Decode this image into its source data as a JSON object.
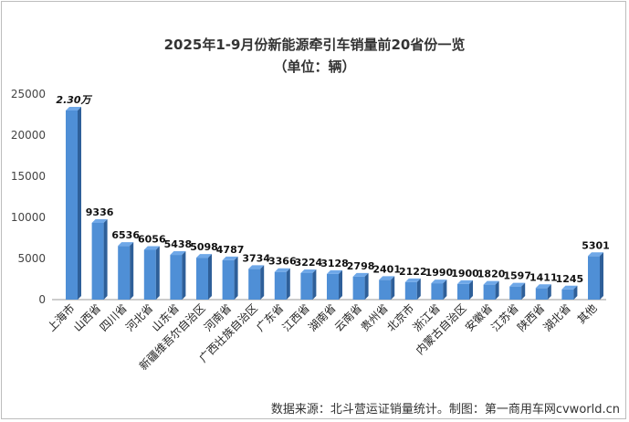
{
  "chart_data": {
    "type": "bar",
    "title": "2025年1-9月份新能源牵引车销量前20省份一览",
    "subtitle": "（单位：辆）",
    "source": "数据来源：北斗营运证销量统计。制图：第一商用车网cvworld.cn",
    "ylim": [
      0,
      25000
    ],
    "yticks": [
      0,
      5000,
      10000,
      15000,
      20000,
      25000
    ],
    "grid": false,
    "categories": [
      "上海市",
      "山西省",
      "四川省",
      "河北省",
      "山东省",
      "新疆维吾尔自治区",
      "河南省",
      "广西壮族自治区",
      "广东省",
      "江西省",
      "湖南省",
      "云南省",
      "贵州省",
      "北京市",
      "浙江省",
      "内蒙古自治区",
      "安徽省",
      "江苏省",
      "陕西省",
      "湖北省",
      "其他"
    ],
    "values": [
      23000,
      9336,
      6536,
      6056,
      5438,
      5098,
      4787,
      3734,
      3366,
      3224,
      3128,
      2798,
      2401,
      2122,
      1990,
      1900,
      1820,
      1597,
      1411,
      1245,
      5301
    ],
    "data_labels": [
      "2.30万",
      "9336",
      "6536",
      "6056",
      "5438",
      "5098",
      "4787",
      "3734",
      "3366",
      "3224",
      "3128",
      "2798",
      "2401",
      "2122",
      "1990",
      "1900",
      "1820",
      "1597",
      "1411",
      "1245",
      "5301"
    ],
    "bar_color": "#4f8fd6",
    "bar_top_color": "#6fa8e8",
    "bar_side_color": "#2e5f99"
  }
}
